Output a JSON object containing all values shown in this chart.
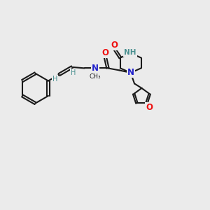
{
  "bg_color": "#ebebeb",
  "bond_color": "#1a1a1a",
  "N_color": "#2020cc",
  "O_color": "#ee1111",
  "H_color": "#4a9090",
  "figsize": [
    3.0,
    3.0
  ],
  "dpi": 100,
  "xlim": [
    0,
    10
  ],
  "ylim": [
    0,
    10
  ]
}
